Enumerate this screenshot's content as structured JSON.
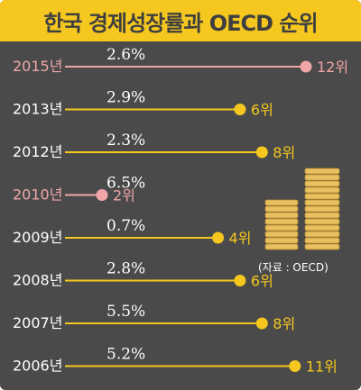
{
  "chart_data": {
    "type": "bar",
    "title": "한국 경제성장률과 OECD 순위",
    "categories": [
      "2015년",
      "2013년",
      "2012년",
      "2010년",
      "2009년",
      "2008년",
      "2007년",
      "2006년"
    ],
    "series": [
      {
        "values": [
          2.6,
          2.9,
          2.3,
          6.5,
          0.7,
          2.8,
          5.5,
          5.2
        ],
        "value_labels": [
          "2.6%",
          "2.9%",
          "2.3%",
          "6.5%",
          "0.7%",
          "2.8%",
          "5.5%",
          "5.2%"
        ]
      }
    ],
    "oecd_rank": [
      12,
      6,
      8,
      2,
      4,
      6,
      8,
      11
    ],
    "rank_labels": [
      "12위",
      "6위",
      "8위",
      "2위",
      "4위",
      "6위",
      "8위",
      "11위"
    ],
    "highlighted_categories": [
      "2015년",
      "2010년"
    ],
    "xlim": [
      1,
      12
    ]
  },
  "source_note": "(자료 : OECD)",
  "colors": {
    "header_bg": "#f6c81f",
    "background": "#4a4a4a",
    "line": "#f6c81f",
    "highlight": "#f0a6a8",
    "year_label": "#ffffff",
    "value_label": "#ffffff",
    "coin": "#e8c060"
  },
  "decoration": {
    "icon": "coin-stack-icon"
  }
}
